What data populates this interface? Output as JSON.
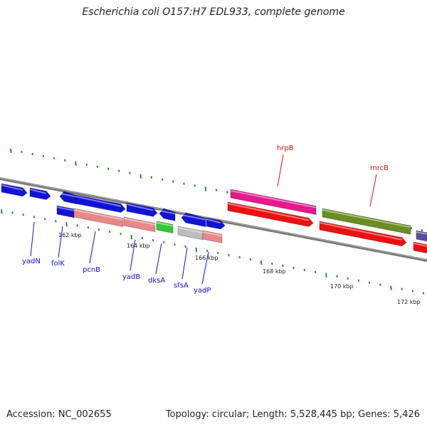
{
  "header": {
    "title": "Escherichia coli O157:H7 EDL933, complete genome"
  },
  "footer": {
    "accession": "Accession: NC_002655",
    "summary": "Topology: circular; Length: 5,528,445 bp; Genes: 5,426"
  },
  "colors": {
    "backbone": "#7a7a7a",
    "tick": "#2e8b2e",
    "cds_blue": "#1212d8",
    "cds_salmon": "#e88888",
    "cds_green": "#2ecc2e",
    "cds_gray": "#bdbdbd",
    "cds_magenta": "#e8188c",
    "cds_olive": "#6b8e23",
    "cds_red": "#ee1010",
    "cds_slate": "#5a4f9a",
    "gene_label": "#1010c8",
    "highlight_label": "#d01010"
  },
  "scale_labels": [
    "162 kbp",
    "164 kbp",
    "166 kbp",
    "168 kbp",
    "170 kbp",
    "172 kbp"
  ],
  "gene_labels": [
    {
      "name": "yadN",
      "color": "blue"
    },
    {
      "name": "folK",
      "color": "blue"
    },
    {
      "name": "pcnB",
      "color": "blue"
    },
    {
      "name": "yadB",
      "color": "blue"
    },
    {
      "name": "dksA",
      "color": "blue"
    },
    {
      "name": "sfsA",
      "color": "blue"
    },
    {
      "name": "yadP",
      "color": "blue"
    },
    {
      "name": "hrpB",
      "color": "red"
    },
    {
      "name": "mrcB",
      "color": "red"
    }
  ]
}
